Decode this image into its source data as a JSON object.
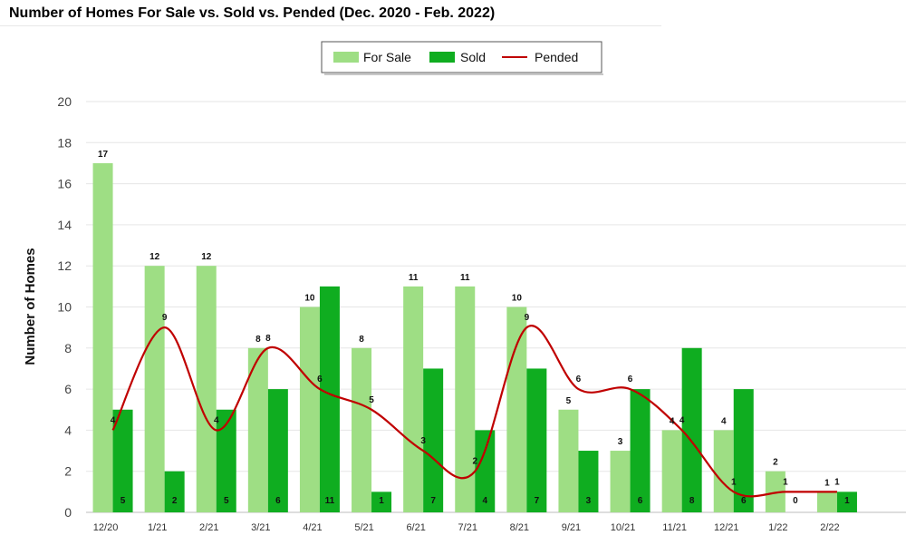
{
  "chart_data": {
    "type": "bar",
    "title": "Number of Homes For Sale vs. Sold vs. Pended (Dec. 2020 - Feb. 2022)",
    "xlabel": "",
    "ylabel": "Number of Homes",
    "ylim": [
      0,
      20
    ],
    "yticks": [
      0,
      2,
      4,
      6,
      8,
      10,
      12,
      14,
      16,
      18,
      20
    ],
    "grid": true,
    "legend_position": "top-center",
    "categories": [
      "12/20",
      "1/21",
      "2/21",
      "3/21",
      "4/21",
      "5/21",
      "6/21",
      "7/21",
      "8/21",
      "9/21",
      "10/21",
      "11/21",
      "12/21",
      "1/22",
      "2/22"
    ],
    "series": [
      {
        "name": "For Sale",
        "kind": "bar",
        "color": "#9ede84",
        "values": [
          17,
          12,
          12,
          8,
          10,
          8,
          11,
          11,
          10,
          5,
          3,
          4,
          4,
          2,
          1
        ]
      },
      {
        "name": "Sold",
        "kind": "bar",
        "color": "#0fad20",
        "values": [
          5,
          2,
          5,
          6,
          11,
          1,
          7,
          4,
          7,
          3,
          6,
          8,
          6,
          0,
          1
        ]
      },
      {
        "name": "Pended",
        "kind": "line",
        "color": "#c00000",
        "values": [
          4,
          9,
          4,
          8,
          6,
          5,
          3,
          2,
          9,
          6,
          6,
          4,
          1,
          1,
          1
        ]
      }
    ]
  }
}
